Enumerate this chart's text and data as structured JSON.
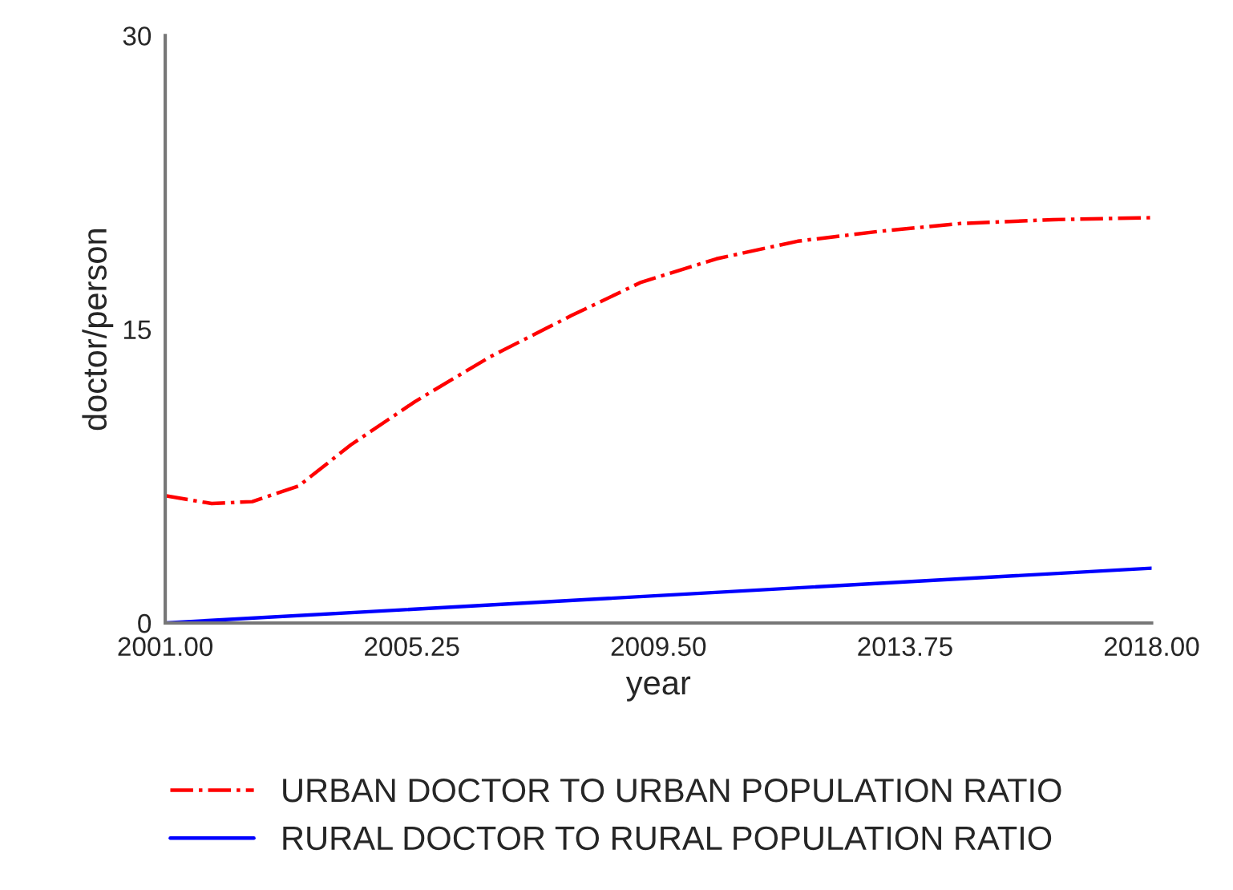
{
  "chart_data": {
    "type": "line",
    "xlabel": "year",
    "ylabel": "doctor/person",
    "xlim": [
      2001,
      2018
    ],
    "xticks": [
      {
        "value": 2001,
        "label": "2001.00"
      },
      {
        "value": 2005.25,
        "label": "2005.25"
      },
      {
        "value": 2009.5,
        "label": "2009.50"
      },
      {
        "value": 2013.75,
        "label": "2013.75"
      },
      {
        "value": 2018,
        "label": "2018.00"
      }
    ],
    "ylim": [
      0,
      30
    ],
    "yticks": [
      0,
      15,
      30
    ],
    "grid": false,
    "legend": "bottom",
    "series": [
      {
        "name": "URBAN DOCTOR TO URBAN POPULATION RATIO",
        "color": "#ff0000",
        "line_style": "dashdot",
        "x": [
          2001,
          2001.8,
          2002.5,
          2003.3,
          2004.2,
          2005.3,
          2006.6,
          2008,
          2009.2,
          2010.5,
          2011.9,
          2013.3,
          2014.7,
          2016.3,
          2018
        ],
        "values": [
          6.5,
          6.1,
          6.2,
          7.0,
          9.1,
          11.3,
          13.6,
          15.7,
          17.4,
          18.6,
          19.5,
          20.0,
          20.4,
          20.6,
          20.7
        ]
      },
      {
        "name": "RURAL DOCTOR TO RURAL POPULATION RATIO",
        "color": "#0000ff",
        "line_style": "solid",
        "x": [
          2001,
          2018
        ],
        "values": [
          0,
          2.8
        ]
      }
    ]
  }
}
